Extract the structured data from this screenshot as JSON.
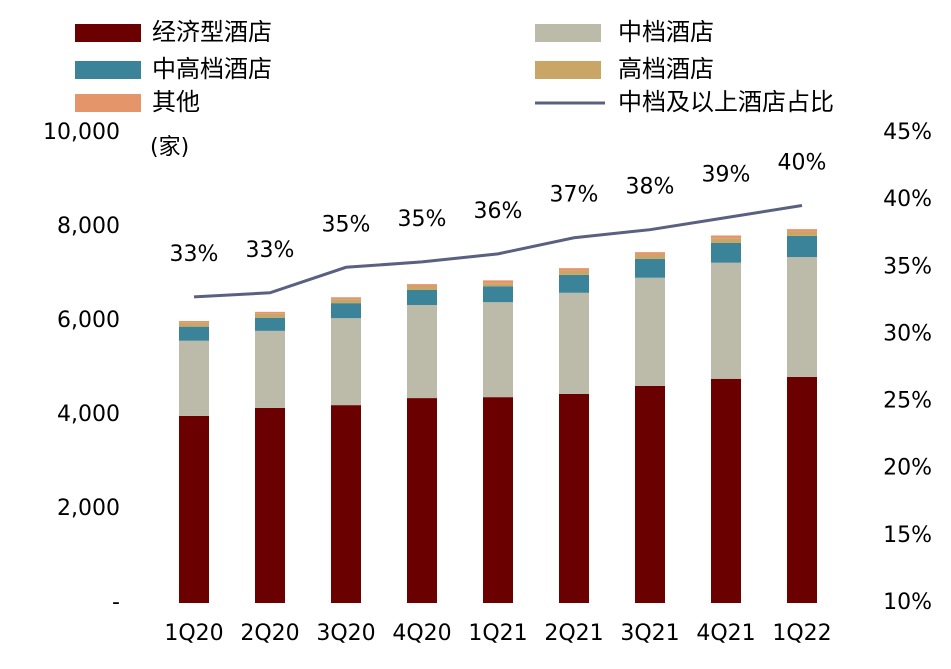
{
  "chart_data": {
    "type": "bar",
    "stacked": true,
    "y_label": "(家)",
    "categories": [
      "1Q20",
      "2Q20",
      "3Q20",
      "4Q20",
      "1Q21",
      "2Q21",
      "3Q21",
      "4Q21",
      "1Q22"
    ],
    "series": [
      {
        "name": "经济型酒店",
        "color": "#6b0000",
        "values": [
          3980,
          4150,
          4210,
          4360,
          4380,
          4450,
          4620,
          4770,
          4810
        ]
      },
      {
        "name": "中档酒店",
        "color": "#bcbaa8",
        "values": [
          1600,
          1640,
          1850,
          1980,
          2020,
          2150,
          2300,
          2470,
          2550
        ]
      },
      {
        "name": "中高档酒店",
        "color": "#3a8399",
        "values": [
          300,
          280,
          320,
          320,
          340,
          380,
          400,
          420,
          450
        ]
      },
      {
        "name": "高档酒店",
        "color": "#c9a665",
        "values": [
          80,
          85,
          85,
          85,
          65,
          85,
          85,
          100,
          85
        ]
      },
      {
        "name": "其他",
        "color": "#e5956a",
        "values": [
          40,
          40,
          40,
          40,
          60,
          60,
          60,
          60,
          60
        ]
      },
      {
        "name": "中档及以上酒店占比",
        "type": "line",
        "axis": "y2",
        "color": "#5a607f",
        "values": [
          32.8,
          33.1,
          35.0,
          35.4,
          36.0,
          37.2,
          37.8,
          38.7,
          39.6
        ],
        "value_labels": [
          "33%",
          "33%",
          "35%",
          "35%",
          "36%",
          "37%",
          "38%",
          "39%",
          "40%"
        ]
      }
    ],
    "ylim": [
      0,
      10000
    ],
    "yticks": [
      {
        "value": 0,
        "label": "-"
      },
      {
        "value": 2000,
        "label": "2,000"
      },
      {
        "value": 4000,
        "label": "4,000"
      },
      {
        "value": 6000,
        "label": "6,000"
      },
      {
        "value": 8000,
        "label": "8,000"
      },
      {
        "value": 10000,
        "label": "10,000"
      }
    ],
    "y2lim": [
      10,
      45
    ],
    "y2ticks": [
      {
        "value": 10,
        "label": "10%"
      },
      {
        "value": 15,
        "label": "15%"
      },
      {
        "value": 20,
        "label": "20%"
      },
      {
        "value": 25,
        "label": "25%"
      },
      {
        "value": 30,
        "label": "30%"
      },
      {
        "value": 35,
        "label": "35%"
      },
      {
        "value": 40,
        "label": "40%"
      },
      {
        "value": 45,
        "label": "45%"
      }
    ],
    "grid": false
  }
}
